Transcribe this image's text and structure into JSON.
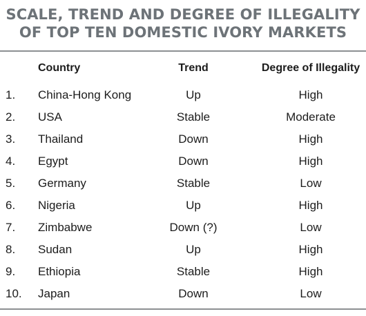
{
  "title": {
    "line1": "SCALE, TREND AND DEGREE OF ILLEGALITY",
    "line2": "OF TOP TEN DOMESTIC IVORY MARKETS"
  },
  "table": {
    "headers": {
      "country": "Country",
      "trend": "Trend",
      "degree": "Degree of Illegality"
    },
    "rows": [
      {
        "num": "1.",
        "country": "China-Hong Kong",
        "trend": "Up",
        "degree": "High"
      },
      {
        "num": "2.",
        "country": "USA",
        "trend": "Stable",
        "degree": "Moderate"
      },
      {
        "num": "3.",
        "country": "Thailand",
        "trend": "Down",
        "degree": "High"
      },
      {
        "num": "4.",
        "country": "Egypt",
        "trend": "Down",
        "degree": "High"
      },
      {
        "num": "5.",
        "country": "Germany",
        "trend": "Stable",
        "degree": "Low"
      },
      {
        "num": "6.",
        "country": "Nigeria",
        "trend": "Up",
        "degree": "High"
      },
      {
        "num": "7.",
        "country": "Zimbabwe",
        "trend": "Down (?)",
        "degree": "Low"
      },
      {
        "num": "8.",
        "country": "Sudan",
        "trend": "Up",
        "degree": "High"
      },
      {
        "num": "9.",
        "country": "Ethiopia",
        "trend": "Stable",
        "degree": "High"
      },
      {
        "num": "10.",
        "country": "Japan",
        "trend": "Down",
        "degree": "Low"
      }
    ]
  }
}
